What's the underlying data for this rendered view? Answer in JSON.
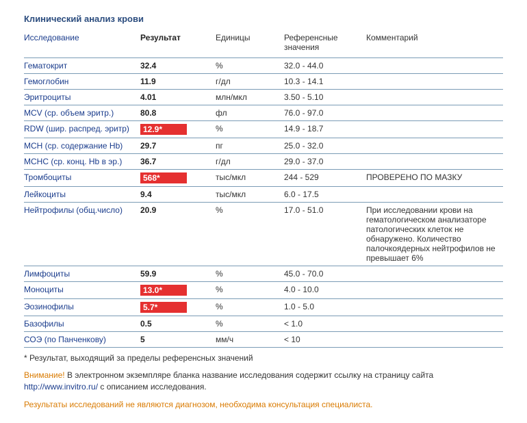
{
  "title": "Клинический анализ крови",
  "columns": {
    "test": "Исследование",
    "result": "Результат",
    "units": "Единицы",
    "ref": "Референсные значения",
    "comment": "Комментарий"
  },
  "rows": [
    {
      "test": "Гематокрит",
      "result": "32.4",
      "flag": false,
      "units": "%",
      "ref": "32.0 - 44.0",
      "comment": ""
    },
    {
      "test": "Гемоглобин",
      "result": "11.9",
      "flag": false,
      "units": "г/дл",
      "ref": "10.3 - 14.1",
      "comment": ""
    },
    {
      "test": "Эритроциты",
      "result": "4.01",
      "flag": false,
      "units": "млн/мкл",
      "ref": "3.50 - 5.10",
      "comment": ""
    },
    {
      "test": "MCV (ср. объем эритр.)",
      "result": "80.8",
      "flag": false,
      "units": "фл",
      "ref": "76.0 - 97.0",
      "comment": ""
    },
    {
      "test": "RDW (шир. распред. эритр)",
      "result": "12.9*",
      "flag": true,
      "units": "%",
      "ref": "14.9 - 18.7",
      "comment": ""
    },
    {
      "test": "MCH (ср. содержание Hb)",
      "result": "29.7",
      "flag": false,
      "units": "пг",
      "ref": "25.0 - 32.0",
      "comment": ""
    },
    {
      "test": "MCHC (ср. конц. Hb в эр.)",
      "result": "36.7",
      "flag": false,
      "units": "г/дл",
      "ref": "29.0 - 37.0",
      "comment": ""
    },
    {
      "test": "Тромбоциты",
      "result": "568*",
      "flag": true,
      "units": "тыс/мкл",
      "ref": "244 - 529",
      "comment": "ПРОВЕРЕНО ПО МАЗКУ"
    },
    {
      "test": "Лейкоциты",
      "result": "9.4",
      "flag": false,
      "units": "тыс/мкл",
      "ref": "6.0 - 17.5",
      "comment": ""
    },
    {
      "test": "Нейтрофилы (общ.число)",
      "result": "20.9",
      "flag": false,
      "units": "%",
      "ref": "17.0 - 51.0",
      "comment": "При исследовании крови на гематологическом анализаторе патологических клеток не обнаружено. Количество палочкоядерных нейтрофилов не превышает 6%"
    },
    {
      "test": "Лимфоциты",
      "result": "59.9",
      "flag": false,
      "units": "%",
      "ref": "45.0 - 70.0",
      "comment": ""
    },
    {
      "test": "Моноциты",
      "result": "13.0*",
      "flag": true,
      "units": "%",
      "ref": "4.0 - 10.0",
      "comment": ""
    },
    {
      "test": "Эозинофилы",
      "result": "5.7*",
      "flag": true,
      "units": "%",
      "ref": "1.0 - 5.0",
      "comment": ""
    },
    {
      "test": "Базофилы",
      "result": "0.5",
      "flag": false,
      "units": "%",
      "ref": "< 1.0",
      "comment": ""
    },
    {
      "test": "СОЭ (по Панченкову)",
      "result": "5",
      "flag": false,
      "units": "мм/ч",
      "ref": "< 10",
      "comment": ""
    }
  ],
  "footnote": "* Результат, выходящий за пределы референсных значений",
  "notice_warn": "Внимание!",
  "notice_text1": " В электронном экземпляре бланка название исследования содержит ссылку на страницу сайта ",
  "notice_link": "http://www.invitro.ru/",
  "notice_text2": " с описанием исследования.",
  "disclaimer": "Результаты исследований не являются диагнозом, необходима консультация специалиста.",
  "colors": {
    "title": "#2b4c7e",
    "test_link": "#1a3c8c",
    "border": "#7a9bb5",
    "flag_bg": "#e53030",
    "flag_text": "#ffffff",
    "warn": "#d97a00"
  }
}
